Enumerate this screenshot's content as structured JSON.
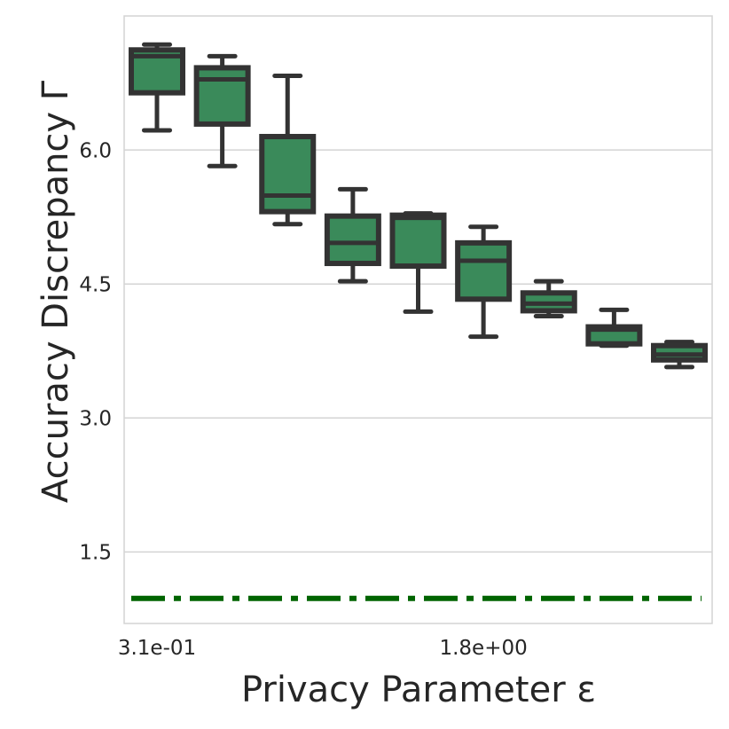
{
  "chart_data": {
    "type": "box",
    "title": "",
    "xlabel": "Privacy Parameter ε",
    "ylabel": "Accuracy Discrepancy Γ",
    "x_tick_labels": [
      {
        "category_index": 0,
        "label": "3.1e-01"
      },
      {
        "category_index": 5,
        "label": "1.8e+00"
      }
    ],
    "y_ticks": [
      "1.5",
      "3.0",
      "4.5",
      "6.0"
    ],
    "ylim": [
      0.7,
      7.5
    ],
    "grid": "horizontal",
    "colors": {
      "box_fill": "#3a8a5a",
      "box_edge": "#333333",
      "reference_line": "#006400",
      "grid": "#d4d4d4"
    },
    "series": [
      {
        "category_index": 0,
        "whisker_low": 6.22,
        "q1": 6.64,
        "median": 7.05,
        "q3": 7.12,
        "whisker_high": 7.18
      },
      {
        "category_index": 1,
        "whisker_low": 5.82,
        "q1": 6.29,
        "median": 6.79,
        "q3": 6.92,
        "whisker_high": 7.05
      },
      {
        "category_index": 2,
        "whisker_low": 5.17,
        "q1": 5.31,
        "median": 5.49,
        "q3": 6.15,
        "whisker_high": 6.83
      },
      {
        "category_index": 3,
        "whisker_low": 4.53,
        "q1": 4.73,
        "median": 4.96,
        "q3": 5.26,
        "whisker_high": 5.56
      },
      {
        "category_index": 4,
        "whisker_low": 4.19,
        "q1": 4.7,
        "median": 5.24,
        "q3": 5.27,
        "whisker_high": 5.29
      },
      {
        "category_index": 5,
        "whisker_low": 3.91,
        "q1": 4.33,
        "median": 4.76,
        "q3": 4.96,
        "whisker_high": 5.14
      },
      {
        "category_index": 6,
        "whisker_low": 4.14,
        "q1": 4.2,
        "median": 4.28,
        "q3": 4.4,
        "whisker_high": 4.53
      },
      {
        "category_index": 7,
        "whisker_low": 3.81,
        "q1": 3.83,
        "median": 3.99,
        "q3": 4.02,
        "whisker_high": 4.21
      },
      {
        "category_index": 8,
        "whisker_low": 3.57,
        "q1": 3.65,
        "median": 3.71,
        "q3": 3.81,
        "whisker_high": 3.85
      }
    ],
    "reference_line": {
      "y": 0.98,
      "style": "dash-dot"
    }
  }
}
